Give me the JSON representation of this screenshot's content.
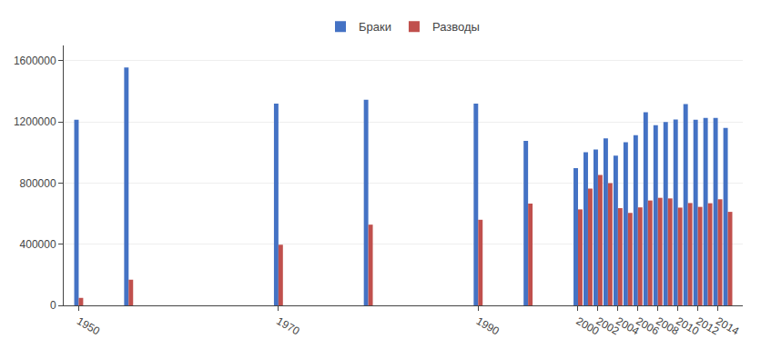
{
  "chart_data": {
    "type": "bar",
    "x": [
      1950,
      1955,
      1970,
      1979,
      1990,
      1995,
      2000,
      2001,
      2002,
      2003,
      2004,
      2005,
      2006,
      2007,
      2008,
      2009,
      2010,
      2011,
      2012,
      2013,
      2014,
      2015
    ],
    "series": [
      {
        "name": "Браки",
        "color": "#4472c4",
        "values": [
          1213600,
          1556000,
          1319647,
          1344580,
          1319928,
          1075219,
          897327,
          1001589,
          1019762,
          1091778,
          979667,
          1066366,
          1113562,
          1262500,
          1179007,
          1199446,
          1215066,
          1316011,
          1213598,
          1225501,
          1225985,
          1161068
        ]
      },
      {
        "name": "Разводы",
        "color": "#c0504d",
        "values": [
          49000,
          167964,
          396589,
          528000,
          559918,
          665904,
          627703,
          763493,
          853647,
          798824,
          635848,
          604806,
          640837,
          685910,
          703412,
          699430,
          639321,
          669376,
          644101,
          667971,
          693730,
          611646
        ]
      }
    ],
    "xlim": [
      1948.5,
      2016.5
    ],
    "xticks": [
      1950,
      1970,
      1990,
      2000,
      2002,
      2004,
      2006,
      2008,
      2010,
      2012,
      2014
    ],
    "ylim": [
      0,
      1700000
    ],
    "yticks": [
      0,
      400000,
      800000,
      1200000,
      1600000
    ],
    "grid": true,
    "legend": "top"
  }
}
